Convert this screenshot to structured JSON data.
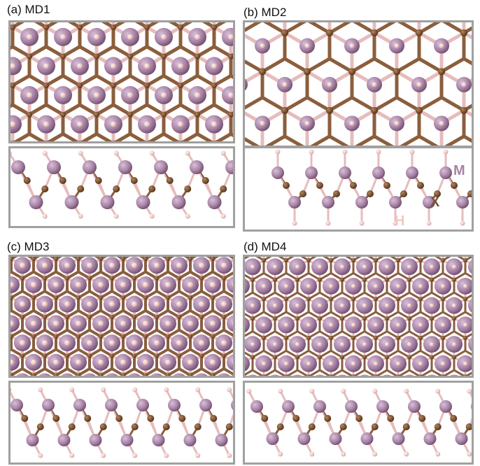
{
  "panels": [
    {
      "label": "(a) MD1",
      "top_view": "hexagonal",
      "side_view": "zigzag"
    },
    {
      "label": "(b) MD2",
      "top_view": "hexagonal",
      "side_view": "zigzag"
    },
    {
      "label": "(c) MD3",
      "top_view": "dense",
      "side_view": "zigzag"
    },
    {
      "label": "(d) MD4",
      "top_view": "dense",
      "side_view": "zigzag"
    }
  ],
  "legend": {
    "metal": "M",
    "chalcogen": "X",
    "hydrogen": "H"
  },
  "colors": {
    "metal": "#a883a6",
    "chalcogen": "#7a5230",
    "hydrogen": "#eec9c5",
    "bond_light": "#e6bcbc",
    "bond_dark": "#8b5e3c",
    "frame": "#a0a0a0"
  },
  "icons": {
    "metal": "purple-sphere",
    "chalcogen": "brown-sphere",
    "hydrogen": "pink-sphere"
  }
}
